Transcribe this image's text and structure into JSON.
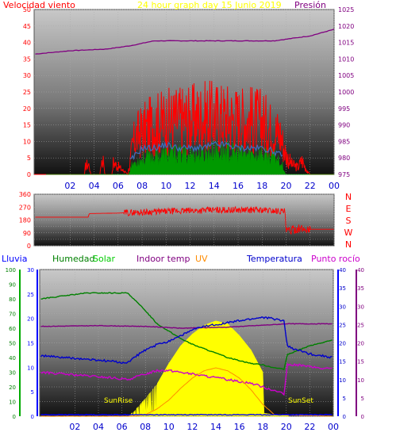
{
  "chart_data": [
    {
      "type": "line",
      "panel": "wind-pressure",
      "title": "24 hour graph day   15 Junio 2019",
      "title_color": "#ffff00",
      "left_axis_label": "Velocidad viento",
      "left_axis_color": "#ff0000",
      "right_axis_label": "Presión",
      "right_axis_color": "#800080",
      "left_ylim": [
        0,
        50
      ],
      "left_ticks": [
        "0",
        "5",
        "10",
        "15",
        "20",
        "25",
        "30",
        "35",
        "40",
        "45",
        "50"
      ],
      "right_ylim": [
        975,
        1025
      ],
      "right_ticks": [
        "975",
        "980",
        "985",
        "990",
        "995",
        "1000",
        "1005",
        "1010",
        "1015",
        "1020",
        "1025"
      ],
      "x_hours_range": [
        -1,
        24
      ],
      "x_tick_labels": [
        "02",
        "04",
        "06",
        "08",
        "10",
        "12",
        "14",
        "16",
        "18",
        "20",
        "22",
        "00"
      ],
      "grid": true,
      "series": [
        {
          "key": "gust",
          "color": "#ff0000",
          "style": "spiky",
          "axis": "left",
          "x": [
            0,
            3.2,
            3.3,
            3.6,
            3.7,
            4.5,
            4.6,
            4.8,
            4.9,
            5.5,
            5.6,
            6.8,
            7.0,
            7.2,
            7.5,
            8,
            9,
            10,
            11,
            12,
            13,
            14,
            15,
            16,
            17,
            18,
            18.5,
            19,
            19.5,
            20,
            20.5,
            21,
            21.3,
            21.8,
            22,
            24
          ],
          "y": [
            0,
            0,
            4,
            4,
            0,
            0,
            6,
            6,
            0,
            0,
            5,
            0,
            5,
            12,
            16,
            18,
            21,
            22,
            23,
            23,
            24,
            24,
            24,
            23,
            23,
            22,
            20,
            18,
            17,
            8,
            4,
            3,
            6,
            1,
            0,
            0
          ]
        },
        {
          "key": "avg_wind",
          "color": "#009900",
          "style": "fill",
          "axis": "left",
          "x": [
            0,
            6.9,
            7.0,
            7.3,
            7.8,
            8.5,
            9,
            10,
            11,
            12,
            13,
            14,
            15,
            16,
            17,
            18,
            18.5,
            19,
            19.5,
            20,
            24
          ],
          "y": [
            0,
            0,
            2,
            4,
            5,
            6,
            6,
            7,
            7,
            7,
            7,
            8,
            8,
            7,
            7,
            7,
            6,
            6,
            5,
            0,
            0
          ]
        },
        {
          "key": "avg_wind_line",
          "color": "#3a6fbf",
          "style": "line",
          "axis": "left",
          "x": [
            7,
            8,
            9,
            10,
            11,
            12,
            13,
            14,
            15,
            16,
            17,
            18,
            19,
            19.8
          ],
          "y": [
            4,
            8,
            8,
            9,
            8,
            8,
            8,
            9,
            9,
            8,
            8,
            8,
            7,
            5
          ]
        },
        {
          "key": "pressure",
          "color": "#800080",
          "style": "line",
          "axis": "right",
          "x": [
            -0.9,
            2,
            5,
            7,
            9,
            11,
            13,
            15,
            17,
            18,
            19,
            20,
            21,
            22,
            23,
            24
          ],
          "y": [
            1011.5,
            1012.5,
            1013,
            1014,
            1015.5,
            1015.5,
            1015.5,
            1015.5,
            1015.5,
            1015.5,
            1015.5,
            1016,
            1016.5,
            1017,
            1018,
            1019
          ]
        }
      ]
    },
    {
      "type": "line",
      "panel": "wind-direction",
      "ylim": [
        0,
        360
      ],
      "ticks": [
        "0",
        "90",
        "180",
        "270",
        "360"
      ],
      "compass_labels": [
        "N",
        "W",
        "S",
        "E",
        "N"
      ],
      "compass_color": "#ff0000",
      "x_hours_range": [
        -1,
        24
      ],
      "grid": true,
      "series": [
        {
          "key": "direction",
          "color": "#ff0000",
          "style": "noisy",
          "x": [
            -0.9,
            3.5,
            3.6,
            6,
            8,
            10,
            12,
            14,
            16,
            18,
            19,
            19.9,
            20.0,
            20.5,
            21,
            21.5,
            22,
            24
          ],
          "y": [
            200,
            200,
            225,
            228,
            235,
            240,
            245,
            250,
            250,
            250,
            245,
            240,
            100,
            110,
            120,
            115,
            115,
            115
          ]
        }
      ]
    },
    {
      "type": "line",
      "panel": "weather",
      "legend": [
        {
          "label": "Lluvia",
          "color": "#0000ff"
        },
        {
          "label": "Humedad",
          "color": "#008000"
        },
        {
          "label": "Solar",
          "color": "#00cc00"
        },
        {
          "label": "Indoor temp",
          "color": "#800080"
        },
        {
          "label": "UV",
          "color": "#ff8c00"
        },
        {
          "label": "Temperatura",
          "color": "#0000cc"
        },
        {
          "label": "Punto rocío",
          "color": "#cc00cc"
        }
      ],
      "humidity_axis": {
        "ylim": [
          0,
          100
        ],
        "ticks": [
          "0",
          "10",
          "20",
          "30",
          "40",
          "50",
          "60",
          "70",
          "80",
          "90",
          "100"
        ]
      },
      "rain_axis": {
        "ylim": [
          0,
          30
        ],
        "ticks": [
          "0",
          "5",
          "10",
          "15",
          "20",
          "25",
          "30"
        ]
      },
      "temp_axis": {
        "ylim": [
          0,
          40
        ],
        "ticks": [
          "0",
          "5",
          "10",
          "15",
          "20",
          "25",
          "30",
          "35",
          "40"
        ]
      },
      "temp_axis2": {
        "ylim": [
          0,
          40
        ],
        "ticks": [
          "0",
          "5",
          "10",
          "15",
          "20",
          "25",
          "30",
          "35",
          "40"
        ]
      },
      "x_hours_range": [
        -1,
        24
      ],
      "x_tick_labels": [
        "02",
        "04",
        "06",
        "08",
        "10",
        "12",
        "14",
        "16",
        "18",
        "20",
        "22",
        "00"
      ],
      "sunrise_label": "SunRise",
      "sunset_label": "SunSet",
      "grid": true,
      "series": [
        {
          "key": "solar",
          "name": "Solar",
          "color": "#ffff00",
          "style": "fill",
          "axis": "humidity",
          "x": [
            6.5,
            7,
            8,
            9,
            10,
            11,
            12,
            13,
            14,
            15,
            16,
            17,
            18,
            18.1,
            19,
            20,
            20.2
          ],
          "y": [
            0,
            3,
            12,
            22,
            36,
            48,
            56,
            62,
            65,
            63,
            55,
            45,
            30,
            2,
            1,
            1,
            0
          ]
        },
        {
          "key": "humidity",
          "name": "Humedad",
          "color": "#008000",
          "style": "line",
          "axis": "humidity",
          "x": [
            -0.9,
            1,
            3,
            5,
            6.5,
            7,
            8,
            9,
            10,
            11,
            12,
            13,
            14,
            15,
            16,
            17,
            18,
            19,
            19.8,
            20.1,
            21,
            22,
            23,
            24
          ],
          "y": [
            80,
            82,
            84,
            84,
            84,
            80,
            72,
            63,
            58,
            53,
            49,
            46,
            43,
            40,
            38,
            36,
            35,
            33,
            32,
            42,
            45,
            48,
            50,
            52
          ]
        },
        {
          "key": "indoor",
          "name": "Indoor temp",
          "color": "#800080",
          "style": "line",
          "axis": "temp",
          "x": [
            -0.9,
            4,
            8,
            11,
            15,
            19,
            20,
            22,
            24
          ],
          "y": [
            24.5,
            24.7,
            24.5,
            24,
            24.3,
            25,
            25.2,
            25.2,
            25.2
          ]
        },
        {
          "key": "temperature",
          "name": "Temperatura",
          "color": "#0000cc",
          "style": "line",
          "axis": "temp",
          "x": [
            -0.9,
            1,
            3,
            5,
            6.5,
            7,
            8,
            9,
            10,
            11,
            12,
            13,
            14,
            15,
            16,
            17,
            18,
            19,
            19.8,
            20.1,
            21,
            22,
            23,
            24
          ],
          "y": [
            16.5,
            16,
            15.5,
            15,
            14.5,
            16,
            18,
            19.5,
            20.5,
            22,
            23.5,
            24.5,
            25,
            25.5,
            26,
            26.5,
            27,
            26.5,
            26,
            19,
            18,
            17,
            16.5,
            16
          ]
        },
        {
          "key": "dewpoint",
          "name": "Punto rocío",
          "color": "#cc00cc",
          "style": "line",
          "axis": "temp",
          "x": [
            -0.9,
            1,
            3,
            5,
            6.5,
            7,
            8,
            9,
            10,
            11,
            12,
            13,
            14,
            15,
            16,
            17,
            18,
            19,
            19.8,
            20.1,
            21,
            22,
            23,
            24
          ],
          "y": [
            12,
            11.5,
            11,
            10.5,
            10,
            10.5,
            11.5,
            12.5,
            12.5,
            12,
            11.5,
            11,
            10.5,
            10,
            9.5,
            9,
            8,
            7,
            6,
            14,
            14,
            13.5,
            13,
            13
          ]
        },
        {
          "key": "uv",
          "name": "UV",
          "color": "#ff8c00",
          "style": "line",
          "axis": "humidity",
          "x": [
            -0.9,
            7,
            8,
            9,
            10,
            11,
            12,
            13,
            14,
            15,
            16,
            17,
            18,
            19,
            24
          ],
          "y": [
            0,
            0,
            1,
            5,
            11,
            19,
            26,
            31,
            33,
            31,
            26,
            18,
            8,
            1,
            0
          ]
        },
        {
          "key": "rain",
          "name": "Lluvia",
          "color": "#0000ff",
          "style": "line",
          "axis": "rain",
          "x": [
            -0.9,
            24
          ],
          "y": [
            0.3,
            0.3
          ]
        }
      ]
    }
  ]
}
